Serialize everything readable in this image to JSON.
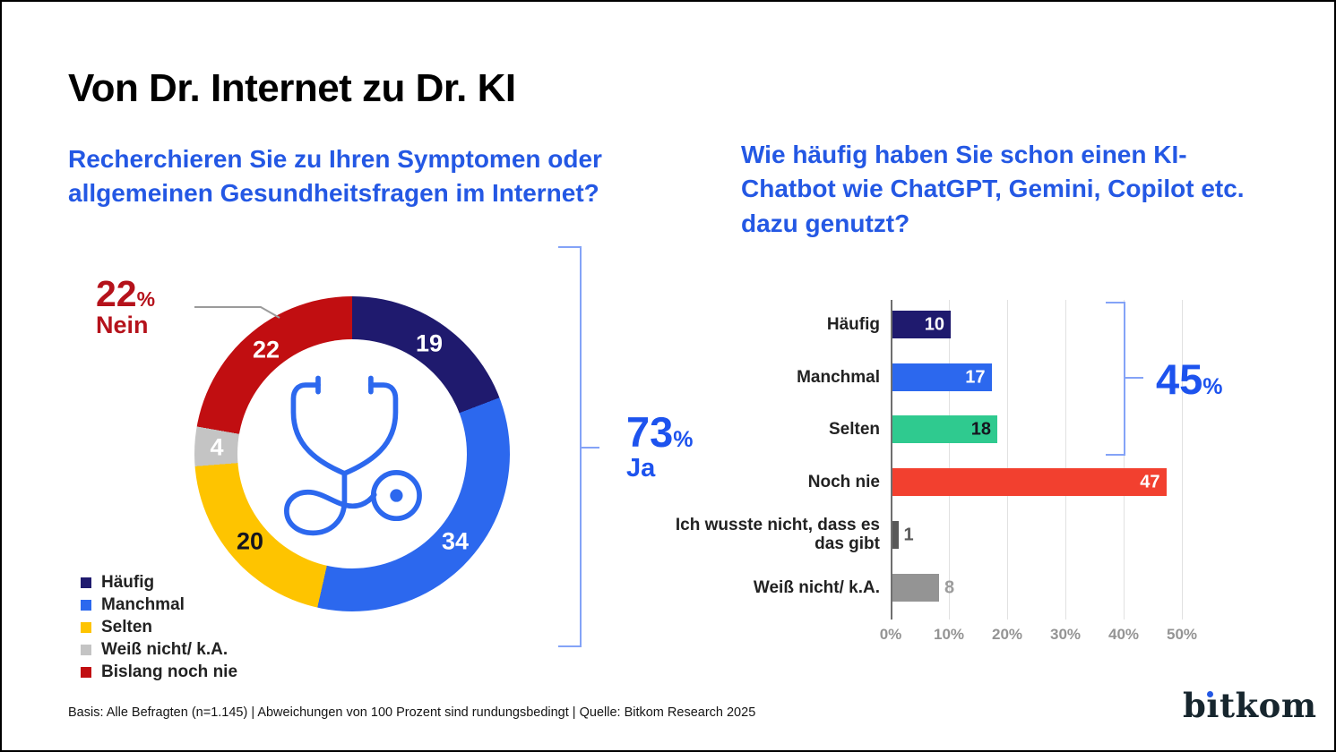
{
  "title": "Von Dr. Internet zu Dr. KI",
  "questions": {
    "left": "Recherchieren Sie zu Ihren Symptomen oder allgemeinen Gesundheitsfragen im Internet?",
    "right": "Wie häufig haben Sie schon einen KI-Chatbot wie ChatGPT, Gemini, Copilot etc. dazu genutzt?"
  },
  "chart_data": [
    {
      "type": "pie",
      "subtype": "donut",
      "title": "Recherchieren Sie zu Ihren Symptomen oder allgemeinen Gesundheitsfragen im Internet?",
      "unit": "%",
      "center_icon": "stethoscope-icon",
      "segments": [
        {
          "label": "Häufig",
          "value": 19,
          "color": "#1f1a6e",
          "value_color": "#ffffff"
        },
        {
          "label": "Manchmal",
          "value": 34,
          "color": "#2c68ee",
          "value_color": "#ffffff"
        },
        {
          "label": "Selten",
          "value": 20,
          "color": "#fec400",
          "value_color": "#15151f"
        },
        {
          "label": "Weiß nicht/ k.A.",
          "value": 4,
          "color": "#c4c4c4",
          "value_color": "#ffffff"
        },
        {
          "label": "Bislang noch nie",
          "value": 22,
          "color": "#c10e11",
          "value_color": "#ffffff"
        }
      ],
      "callouts": [
        {
          "value": "22",
          "suffix": "%",
          "label": "Nein",
          "color": "#b5121b",
          "refers_to": "Bislang noch nie"
        },
        {
          "value": "73",
          "suffix": "%",
          "label": "Ja",
          "color": "#1d53ee",
          "refers_to": "Häufig + Manchmal + Selten"
        }
      ],
      "legend_position": "bottom-left"
    },
    {
      "type": "bar",
      "orientation": "horizontal",
      "title": "Wie häufig haben Sie schon einen KI-Chatbot wie ChatGPT, Gemini, Copilot etc. dazu genutzt?",
      "unit": "%",
      "xlim": [
        0,
        50
      ],
      "grid": true,
      "x_ticks": [
        "0%",
        "10%",
        "20%",
        "30%",
        "40%",
        "50%"
      ],
      "rows": [
        {
          "label": "Häufig",
          "value": 10,
          "color": "#1f1a6e",
          "value_color": "#ffffff",
          "value_position": "inside"
        },
        {
          "label": "Manchmal",
          "value": 17,
          "color": "#2c68ee",
          "value_color": "#ffffff",
          "value_position": "inside"
        },
        {
          "label": "Selten",
          "value": 18,
          "color": "#2fca8f",
          "value_color": "#15151f",
          "value_position": "inside"
        },
        {
          "label": "Noch nie",
          "value": 47,
          "color": "#f2402f",
          "value_color": "#ffffff",
          "value_position": "inside"
        },
        {
          "label": "Ich wusste nicht, dass es das gibt",
          "value": 1,
          "color": "#595959",
          "value_color": "#595959",
          "value_position": "outside"
        },
        {
          "label": "Weiß nicht/ k.A.",
          "value": 8,
          "color": "#949494",
          "value_color": "#9c9c9c",
          "value_position": "outside"
        }
      ],
      "bracket": {
        "value": "45",
        "suffix": "%",
        "color": "#1d53ee",
        "covers": [
          "Häufig",
          "Manchmal",
          "Selten"
        ]
      }
    }
  ],
  "legend": {
    "items": [
      {
        "label": "Häufig",
        "color": "#1f1a6e"
      },
      {
        "label": "Manchmal",
        "color": "#2c68ee"
      },
      {
        "label": "Selten",
        "color": "#fec400"
      },
      {
        "label": "Weiß nicht/ k.A.",
        "color": "#c4c4c4"
      },
      {
        "label": "Bislang noch nie",
        "color": "#c10e11"
      }
    ]
  },
  "annotations": {
    "nein": {
      "value": "22",
      "pct": "%",
      "label": "Nein"
    },
    "ja": {
      "value": "73",
      "pct": "%",
      "label": "Ja"
    },
    "bar_bracket": {
      "value": "45",
      "pct": "%"
    }
  },
  "footer": {
    "source": "Basis: Alle Befragten (n=1.145) | Abweichungen von 100 Prozent sind rundungsbedingt  | Quelle: Bitkom Research 2025"
  },
  "logo": {
    "text": "bitkom",
    "part_pre": "b",
    "part_i": "ı",
    "part_post": "tkom"
  },
  "colors": {
    "question_blue": "#2458e4",
    "callout_blue": "#1d53ee",
    "callout_red": "#b5121b",
    "bracket_light_blue": "#84a3f7",
    "axis_gray": "#6f6f6f",
    "grid_gray": "#e1e1e1"
  }
}
